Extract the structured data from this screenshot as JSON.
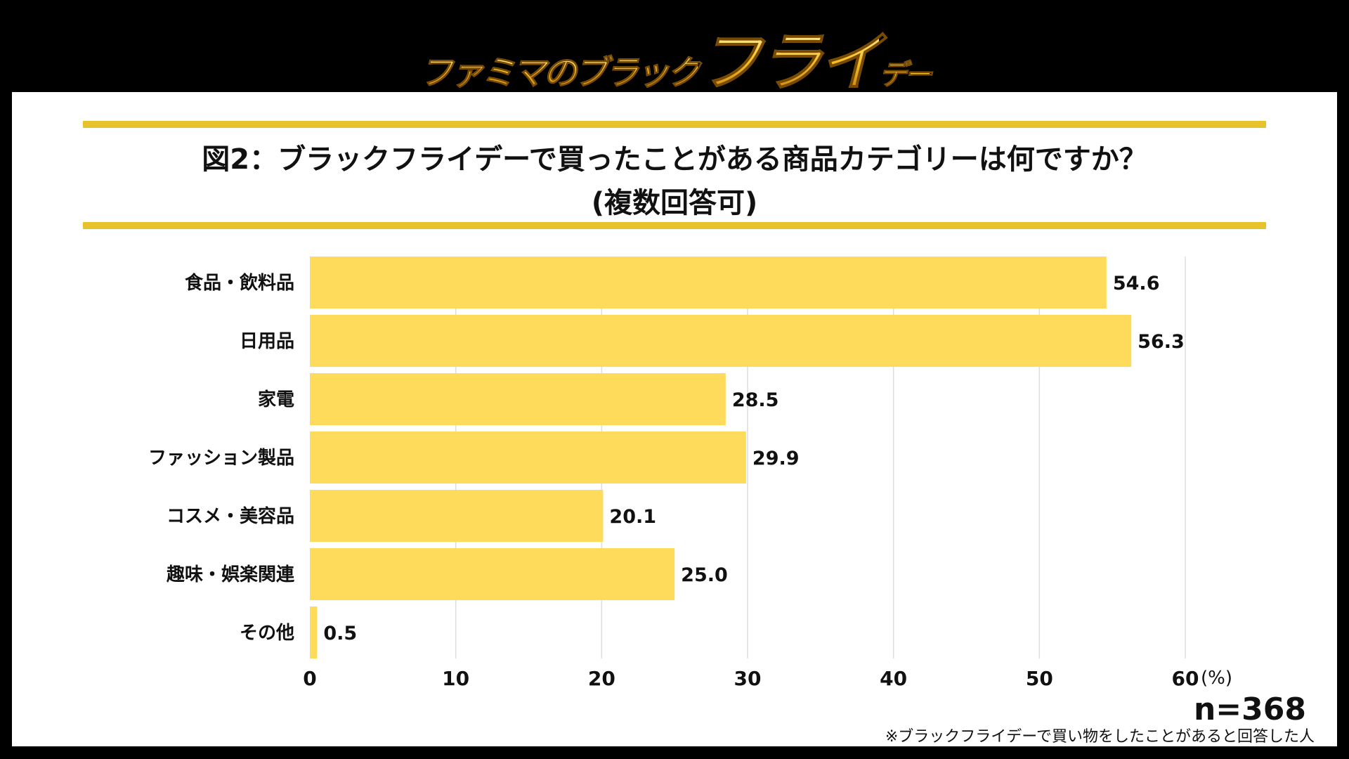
{
  "logo": {
    "small": "ファミマのブラック",
    "big": "フライ",
    "tail": "デー"
  },
  "chart_data": {
    "type": "bar",
    "orientation": "horizontal",
    "title": "図2：ブラックフライデーで買ったことがある商品カテゴリーは何ですか？",
    "subtitle": "(複数回答可)",
    "categories": [
      "食品・飲料品",
      "日用品",
      "家電",
      "ファッション製品",
      "コスメ・美容品",
      "趣味・娯楽関連",
      "その他"
    ],
    "values": [
      54.6,
      56.3,
      28.5,
      29.9,
      20.1,
      25.0,
      0.5
    ],
    "value_labels": [
      "54.6",
      "56.3",
      "28.5",
      "29.9",
      "20.1",
      "25.0",
      "0.5"
    ],
    "xlim": [
      0,
      60
    ],
    "xticks": [
      "0",
      "10",
      "20",
      "30",
      "40",
      "50",
      "60"
    ],
    "xunit": "(%)",
    "grid": true,
    "bar_color": "#FFDB5C",
    "sample": "n=368",
    "footnote": "※ブラックフライデーで買い物をしたことがあると回答した人"
  }
}
